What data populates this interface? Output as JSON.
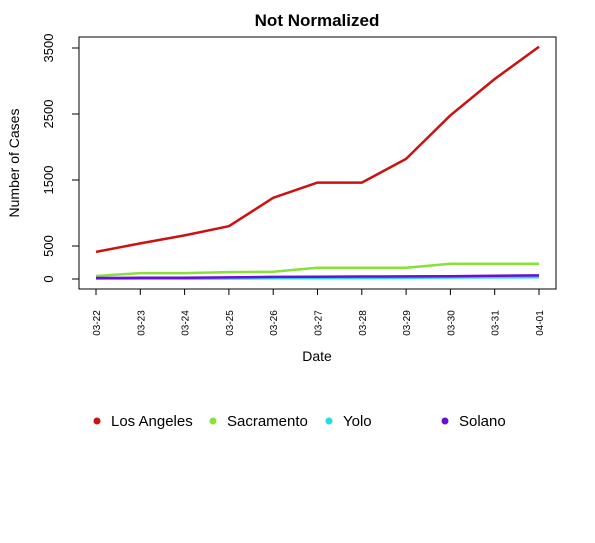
{
  "chart_data": {
    "type": "line",
    "title": "Not Normalized",
    "xlabel": "Date",
    "ylabel": "Number of Cases",
    "categories": [
      "03-22",
      "03-23",
      "03-24",
      "03-25",
      "03-26",
      "03-27",
      "03-28",
      "03-29",
      "03-30",
      "03-31",
      "04-01"
    ],
    "yticks": [
      0,
      500,
      1500,
      2500,
      3500
    ],
    "ylim": [
      -80,
      3620
    ],
    "grid": false,
    "legend_position": "bottom",
    "series": [
      {
        "name": "Los Angeles",
        "color": "#cc1111",
        "values": [
          410,
          540,
          660,
          800,
          1230,
          1460,
          1460,
          1820,
          2480,
          3030,
          3520
        ]
      },
      {
        "name": "Sacramento",
        "color": "#88e03a",
        "values": [
          45,
          90,
          90,
          105,
          110,
          170,
          170,
          170,
          230,
          230,
          230
        ]
      },
      {
        "name": "Yolo",
        "color": "#22dddd",
        "values": [
          5,
          5,
          5,
          8,
          10,
          12,
          14,
          18,
          22,
          25,
          28
        ]
      },
      {
        "name": "Solano",
        "color": "#6a0dd9",
        "values": [
          15,
          18,
          20,
          25,
          32,
          35,
          38,
          40,
          42,
          50,
          55
        ]
      }
    ]
  }
}
